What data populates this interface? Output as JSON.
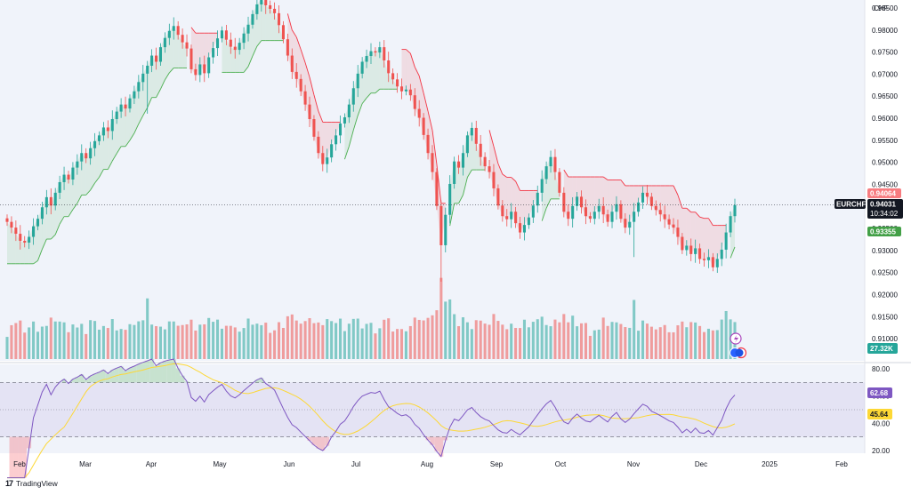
{
  "header": {
    "currency": "CHF"
  },
  "chart_data": [
    {
      "type": "candlestick",
      "symbol": "EURCHF",
      "x_ticks": [
        "Feb",
        "Mar",
        "Apr",
        "May",
        "Jun",
        "Jul",
        "Aug",
        "Sep",
        "Oct",
        "Nov",
        "Dec",
        "2025",
        "Feb"
      ],
      "y_ticks": [
        "0.98500",
        "0.98000",
        "0.97500",
        "0.97000",
        "0.96500",
        "0.96000",
        "0.95500",
        "0.95000",
        "0.94500",
        "0.94000",
        "0.93500",
        "0.93000",
        "0.92500",
        "0.92000",
        "0.91500",
        "0.91000"
      ],
      "ylim": [
        0.905,
        0.9868
      ],
      "last_price": "0.94031",
      "countdown": "10:34:02",
      "supertrend_upper": "0.94064",
      "supertrend_lower": "0.93355",
      "close_series": [
        0.9365,
        0.9352,
        0.9338,
        0.9322,
        0.9318,
        0.9331,
        0.9355,
        0.9372,
        0.9398,
        0.9421,
        0.9402,
        0.9431,
        0.9455,
        0.9472,
        0.9461,
        0.9488,
        0.9502,
        0.9521,
        0.9509,
        0.9532,
        0.9548,
        0.9561,
        0.9579,
        0.9571,
        0.9598,
        0.9615,
        0.9631,
        0.9622,
        0.9645,
        0.9661,
        0.9682,
        0.9701,
        0.9719,
        0.9742,
        0.9728,
        0.9761,
        0.9782,
        0.9798,
        0.9809,
        0.9789,
        0.9772,
        0.9758,
        0.9711,
        0.9698,
        0.9722,
        0.9702,
        0.9738,
        0.9759,
        0.9781,
        0.9799,
        0.9778,
        0.9762,
        0.9755,
        0.9771,
        0.9792,
        0.9812,
        0.9836,
        0.9858,
        0.9871,
        0.9856,
        0.9848,
        0.9838,
        0.9811,
        0.9779,
        0.9742,
        0.9705,
        0.9689,
        0.9661,
        0.9631,
        0.9598,
        0.9558,
        0.9521,
        0.9496,
        0.9511,
        0.9541,
        0.9561,
        0.9588,
        0.9602,
        0.9631,
        0.9668,
        0.9701,
        0.9728,
        0.9741,
        0.9752,
        0.9749,
        0.9761,
        0.9731,
        0.9702,
        0.9688,
        0.9672,
        0.9661,
        0.9665,
        0.9652,
        0.9621,
        0.9601,
        0.9562,
        0.9521,
        0.9478,
        0.9401,
        0.9312,
        0.9381,
        0.9451,
        0.9502,
        0.9488,
        0.9521,
        0.9561,
        0.9578,
        0.9542,
        0.9512,
        0.9491,
        0.9478,
        0.9441,
        0.9402,
        0.9378,
        0.9371,
        0.9388,
        0.9362,
        0.9341,
        0.9358,
        0.9375,
        0.9402,
        0.9431,
        0.9462,
        0.9491,
        0.9512,
        0.9478,
        0.9431,
        0.9388,
        0.9372,
        0.9401,
        0.9422,
        0.9398,
        0.9378,
        0.9372,
        0.9388,
        0.9401,
        0.9382,
        0.9365,
        0.9388,
        0.9405,
        0.9372,
        0.9352,
        0.9365,
        0.9388,
        0.9409,
        0.9431,
        0.9422,
        0.9401,
        0.9392,
        0.9382,
        0.9371,
        0.9359,
        0.9352,
        0.9331,
        0.9301,
        0.9311,
        0.9292,
        0.9305,
        0.9281,
        0.9278,
        0.9285,
        0.9262,
        0.9281,
        0.9302,
        0.9341,
        0.9378,
        0.9403
      ],
      "volume_label": "27.32K",
      "rsi": {
        "y_ticks": [
          "80.00",
          "60.00",
          "40.00",
          "20.00"
        ],
        "ylim": [
          18,
          82
        ],
        "value_label": "62.68",
        "ma_label": "45.64",
        "upper_band": 70,
        "mid_band": 50,
        "lower_band": 30
      }
    }
  ],
  "colors": {
    "up": "#26a69a",
    "down": "#ef5350",
    "supertrend_up": "#4caf50",
    "supertrend_down": "#f23645",
    "rsi": "#7e57c2",
    "rsi_ma": "#fdd835",
    "last_price_bg": "#131722"
  },
  "footer": {
    "brand": "TradingView"
  }
}
